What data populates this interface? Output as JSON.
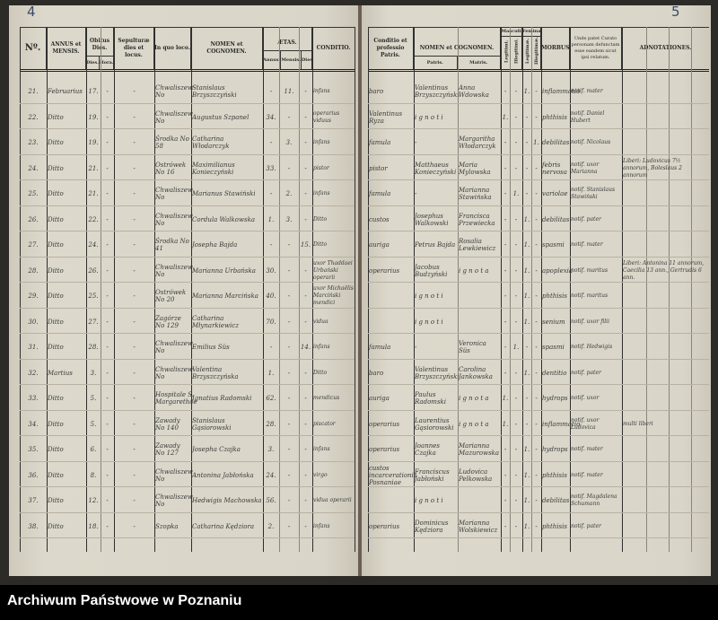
{
  "pages": {
    "left_number": "4",
    "right_number": "5"
  },
  "left_header": {
    "no": "Nº.",
    "annus": "ANNUS et MENSIS.",
    "obitus": "Obitus Dies.",
    "obitus_dies": "Dies.",
    "obitus_hora": "Hora.",
    "sepultura": "Sepulturæ dies et locus.",
    "locus": "In quo loco.",
    "nomen": "NOMEN et COGNOMEN.",
    "aetas": "ÆTAS.",
    "anni": "Annus.",
    "menses": "Mensis.",
    "dies": "Dies",
    "conditio": "CONDITIO."
  },
  "right_header": {
    "conditio_patris": "Conditio et professio Patris.",
    "nomen": "NOMEN et COGNOMEN.",
    "patris": "Patris.",
    "matris": "Matris.",
    "masculi": "Masculi",
    "feminae": "Feminæ",
    "legitimi": "Legitimi.",
    "illegitimi": "Illegitimi.",
    "legitimae": "Legitimæ.",
    "illegitimae": "Illegitimæ.",
    "morbus": "MORBUS.",
    "informant": "Unde patet Curato personam defunctam esse eandem sicut ipsi relatum.",
    "adnotationes": "ADNOTATIONES."
  },
  "entries": [
    {
      "no": "21.",
      "month": "Februarius",
      "day": "17.",
      "hour": "-",
      "sep": "-",
      "place": "Chwaliszew No",
      "name": "Stanislaus Brzyszczyński",
      "anni": "-",
      "menses": "11.",
      "dies": "-",
      "cond": "infans",
      "pcond": "baro",
      "father": "Valentinus Brzyszczyński",
      "mother": "Anna Wdowska",
      "ml": "-",
      "mi": "-",
      "fl": "1.",
      "fi": "-",
      "morbus": "inflammatio",
      "inf": "notif. mater",
      "notes": ""
    },
    {
      "no": "22.",
      "month": "Ditto",
      "day": "19.",
      "hour": "-",
      "sep": "-",
      "place": "Chwaliszew No",
      "name": "Augustus Szpanel",
      "anni": "34.",
      "menses": "-",
      "dies": "-",
      "cond": "operarius viduus",
      "pcond": "Valentinus Ryza",
      "father": "i g n o t i",
      "mother": "",
      "ml": "1.",
      "mi": "-",
      "fl": "-",
      "fi": "-",
      "morbus": "phthisis",
      "inf": "notif. Daniel Hubert",
      "notes": ""
    },
    {
      "no": "23.",
      "month": "Ditto",
      "day": "19.",
      "hour": "-",
      "sep": "-",
      "place": "Środka No 58",
      "name": "Catharina Włodarczyk",
      "anni": "-",
      "menses": "3.",
      "dies": "-",
      "cond": "infans",
      "pcond": "famula",
      "father": "-",
      "mother": "Margaritha Włodarczyk",
      "ml": "-",
      "mi": "-",
      "fl": "-",
      "fi": "1.",
      "morbus": "debilitas",
      "inf": "notif. Nicolaus",
      "notes": ""
    },
    {
      "no": "24.",
      "month": "Ditto",
      "day": "21.",
      "hour": "-",
      "sep": "-",
      "place": "Ostrówek No 16",
      "name": "Maximilianus Konieczyński",
      "anni": "33.",
      "menses": "-",
      "dies": "-",
      "cond": "pistor",
      "pcond": "pistor",
      "father": "Matthaeus Konieczyński",
      "mother": "Maria Mylowska",
      "ml": "-",
      "mi": "-",
      "fl": "-",
      "fi": "-",
      "morbus": "febris nervosa",
      "inf": "notif. uxor Marianna",
      "notes": "Liberi: Ludovicus 7½ annorum, Boleslaus 2 annorum"
    },
    {
      "no": "25.",
      "month": "Ditto",
      "day": "21.",
      "hour": "-",
      "sep": "-",
      "place": "Chwaliszew No",
      "name": "Marianus Stawiński",
      "anni": "-",
      "menses": "2.",
      "dies": "-",
      "cond": "infans",
      "pcond": "famula",
      "father": "-",
      "mother": "Marianna Stawińska",
      "ml": "-",
      "mi": "1.",
      "fl": "-",
      "fi": "-",
      "morbus": "variolae",
      "inf": "notif. Stanislaus Stawiński",
      "notes": ""
    },
    {
      "no": "26.",
      "month": "Ditto",
      "day": "22.",
      "hour": "-",
      "sep": "-",
      "place": "Chwaliszew No",
      "name": "Cordula Walkowska",
      "anni": "1.",
      "menses": "3.",
      "dies": "-",
      "cond": "Ditto",
      "pcond": "custos",
      "father": "Josephus Walkowski",
      "mother": "Francisca Przewiecka",
      "ml": "-",
      "mi": "-",
      "fl": "1.",
      "fi": "-",
      "morbus": "debilitas",
      "inf": "notif. pater",
      "notes": ""
    },
    {
      "no": "27.",
      "month": "Ditto",
      "day": "24.",
      "hour": "-",
      "sep": "-",
      "place": "Środka No 41",
      "name": "Josepha Bajda",
      "anni": "-",
      "menses": "-",
      "dies": "15.",
      "cond": "Ditto",
      "pcond": "auriga",
      "father": "Petrus Bajda",
      "mother": "Rosalia Lewkiewicz",
      "ml": "-",
      "mi": "-",
      "fl": "1.",
      "fi": "-",
      "morbus": "spasmi",
      "inf": "notif. mater",
      "notes": ""
    },
    {
      "no": "28.",
      "month": "Ditto",
      "day": "26.",
      "hour": "-",
      "sep": "-",
      "place": "Chwaliszew No",
      "name": "Marianna Urbańska",
      "anni": "30.",
      "menses": "-",
      "dies": "-",
      "cond": "uxor Thaddaei Urbański operarii",
      "pcond": "operarius",
      "father": "Jacobus Budzyński",
      "mother": "i g n o t a",
      "ml": "-",
      "mi": "-",
      "fl": "1.",
      "fi": "-",
      "morbus": "apoplexia",
      "inf": "notif. maritus",
      "notes": "Liberi: Antonina 11 annorum, Caecilia 13 ann., Gertrudis 6 ann."
    },
    {
      "no": "29.",
      "month": "Ditto",
      "day": "25.",
      "hour": "-",
      "sep": "-",
      "place": "Ostrówek No 20",
      "name": "Marianna Marcińska",
      "anni": "40.",
      "menses": "-",
      "dies": "-",
      "cond": "uxor Michaëlis Marciński mendici",
      "pcond": "",
      "father": "i g n o t i",
      "mother": "",
      "ml": "-",
      "mi": "-",
      "fl": "1.",
      "fi": "-",
      "morbus": "phthisis",
      "inf": "notif. maritus",
      "notes": ""
    },
    {
      "no": "30.",
      "month": "Ditto",
      "day": "27.",
      "hour": "-",
      "sep": "-",
      "place": "Zagórze No 129",
      "name": "Catharina Młynarkiewicz",
      "anni": "70.",
      "menses": "-",
      "dies": "-",
      "cond": "vidua",
      "pcond": "",
      "father": "i g n o t i",
      "mother": "",
      "ml": "-",
      "mi": "-",
      "fl": "1.",
      "fi": "-",
      "morbus": "senium",
      "inf": "notif. uxor filii",
      "notes": ""
    },
    {
      "no": "31.",
      "month": "Ditto",
      "day": "28.",
      "hour": "-",
      "sep": "-",
      "place": "Chwaliszew No",
      "name": "Emilius Süs",
      "anni": "-",
      "menses": "-",
      "dies": "14.",
      "cond": "infans",
      "pcond": "famula",
      "father": "-",
      "mother": "Veronica Süs",
      "ml": "-",
      "mi": "1.",
      "fl": "-",
      "fi": "-",
      "morbus": "spasmi",
      "inf": "notif. Hedwigis",
      "notes": ""
    },
    {
      "no": "32.",
      "month": "Martius",
      "day": "3.",
      "hour": "-",
      "sep": "-",
      "place": "Chwaliszew No",
      "name": "Valentina Brzyszczyńska",
      "anni": "1.",
      "menses": "-",
      "dies": "-",
      "cond": "Ditto",
      "pcond": "baro",
      "father": "Valentinus Brzyszczyński",
      "mother": "Carolina Jankowska",
      "ml": "-",
      "mi": "-",
      "fl": "1.",
      "fi": "-",
      "morbus": "dentitio",
      "inf": "notif. pater",
      "notes": ""
    },
    {
      "no": "33.",
      "month": "Ditto",
      "day": "5.",
      "hour": "-",
      "sep": "-",
      "place": "Hospitale S. Margarethae",
      "name": "Ignatius Radomski",
      "anni": "62.",
      "menses": "-",
      "dies": "-",
      "cond": "mendicus",
      "pcond": "auriga",
      "father": "Paulus Radomski",
      "mother": "i g n o t a",
      "ml": "1.",
      "mi": "-",
      "fl": "-",
      "fi": "-",
      "morbus": "hydrops",
      "inf": "notif. uxor",
      "notes": ""
    },
    {
      "no": "34.",
      "month": "Ditto",
      "day": "5.",
      "hour": "-",
      "sep": "-",
      "place": "Zawady No 140",
      "name": "Stanislaus Gąsiorowski",
      "anni": "28.",
      "menses": "-",
      "dies": "-",
      "cond": "piscator",
      "pcond": "operarius",
      "father": "Laurentius Gąsiorowski",
      "mother": "i g n o t a",
      "ml": "1.",
      "mi": "-",
      "fl": "-",
      "fi": "-",
      "morbus": "inflammatio",
      "inf": "notif. uxor Ludovica",
      "notes": "multi liberi"
    },
    {
      "no": "35.",
      "month": "Ditto",
      "day": "6.",
      "hour": "-",
      "sep": "-",
      "place": "Zawady No 127",
      "name": "Josepha Czajka",
      "anni": "3.",
      "menses": "-",
      "dies": "-",
      "cond": "infans",
      "pcond": "operarius",
      "father": "Joannes Czajka",
      "mother": "Marianna Mazurowska",
      "ml": "-",
      "mi": "-",
      "fl": "1.",
      "fi": "-",
      "morbus": "hydrops",
      "inf": "notif. mater",
      "notes": ""
    },
    {
      "no": "36.",
      "month": "Ditto",
      "day": "8.",
      "hour": "-",
      "sep": "-",
      "place": "Chwaliszew No",
      "name": "Antonina Jabłońska",
      "anni": "24.",
      "menses": "-",
      "dies": "-",
      "cond": "virgo",
      "pcond": "custos incarcerationis Posnaniae",
      "father": "Franciscus Jabłoński",
      "mother": "Ludovica Pelkowska",
      "ml": "-",
      "mi": "-",
      "fl": "1.",
      "fi": "-",
      "morbus": "phthisis",
      "inf": "notif. mater",
      "notes": ""
    },
    {
      "no": "37.",
      "month": "Ditto",
      "day": "12.",
      "hour": "-",
      "sep": "-",
      "place": "Chwaliszew No",
      "name": "Hedwigis Machowska",
      "anni": "56.",
      "menses": "-",
      "dies": "-",
      "cond": "vidua operarii",
      "pcond": "",
      "father": "i g n o t i",
      "mother": "",
      "ml": "-",
      "mi": "-",
      "fl": "1.",
      "fi": "-",
      "morbus": "debilitas",
      "inf": "notif. Magdalena Schumann",
      "notes": ""
    },
    {
      "no": "38.",
      "month": "Ditto",
      "day": "18.",
      "hour": "-",
      "sep": "-",
      "place": "Szopka",
      "name": "Catharina Kędziora",
      "anni": "2.",
      "menses": "-",
      "dies": "-",
      "cond": "infans",
      "pcond": "operarius",
      "father": "Dominicus Kędziora",
      "mother": "Marianna Wolskiewicz",
      "ml": "-",
      "mi": "-",
      "fl": "1.",
      "fi": "-",
      "morbus": "phthisis",
      "inf": "notif. pater",
      "notes": ""
    }
  ],
  "footer": {
    "archive": "Archiwum Państwowe w Poznaniu"
  }
}
